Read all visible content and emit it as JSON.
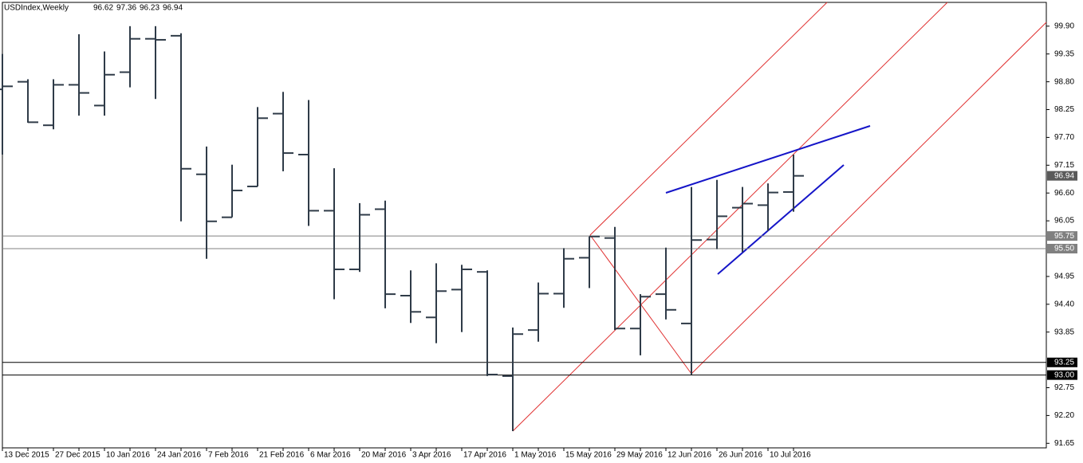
{
  "chart_data": {
    "type": "ohlc",
    "title": "USDIndex,Weekly",
    "categories": [
      "13 Dec 2015",
      null,
      "27 Dec 2015",
      null,
      "10 Jan 2016",
      null,
      "24 Jan 2016",
      null,
      "7 Feb 2016",
      null,
      "21 Feb 2016",
      null,
      "6 Mar 2016",
      null,
      "20 Mar 2016",
      null,
      "3 Apr 2016",
      null,
      "17 Apr 2016",
      null,
      "1 May 2016",
      null,
      "15 May 2016",
      null,
      "29 May 2016",
      null,
      "12 Jun 2016",
      null,
      "26 Jun 2016",
      null,
      "10 Jul 2016",
      null
    ],
    "open": [
      98.65,
      98.8,
      97.94,
      98.74,
      98.33,
      98.99,
      99.65,
      99.71,
      96.97,
      96.12,
      96.73,
      98.17,
      97.36,
      96.25,
      95.09,
      96.28,
      94.57,
      94.14,
      94.69,
      95.04,
      92.98,
      93.89,
      94.61,
      95.32,
      95.71,
      93.92,
      94.6,
      94.02,
      95.68,
      96.31,
      96.36,
      96.62
    ],
    "high": [
      99.35,
      98.85,
      98.85,
      99.74,
      99.4,
      99.9,
      99.9,
      99.76,
      97.52,
      97.16,
      98.3,
      98.6,
      98.44,
      97.09,
      96.4,
      96.45,
      95.07,
      95.21,
      95.18,
      95.07,
      93.94,
      94.83,
      95.51,
      95.74,
      95.93,
      94.6,
      95.52,
      96.72,
      96.86,
      96.72,
      96.79,
      97.36
    ],
    "low": [
      97.36,
      97.99,
      97.86,
      98.13,
      98.13,
      98.69,
      98.46,
      96.04,
      95.3,
      96.12,
      96.73,
      97.03,
      95.95,
      94.5,
      95.04,
      94.32,
      94.03,
      93.63,
      93.85,
      92.98,
      91.89,
      93.66,
      94.33,
      94.72,
      93.89,
      93.39,
      94.1,
      93.01,
      95.49,
      95.43,
      95.85,
      96.23
    ],
    "close": [
      98.71,
      98.0,
      98.74,
      98.58,
      98.94,
      99.65,
      99.63,
      97.08,
      96.04,
      96.65,
      98.08,
      97.39,
      96.25,
      95.09,
      96.17,
      94.6,
      94.25,
      94.66,
      95.09,
      93.01,
      93.81,
      94.61,
      95.3,
      95.74,
      93.92,
      94.55,
      94.29,
      95.67,
      96.14,
      96.39,
      96.61,
      96.94
    ],
    "color": "#2f3b48",
    "ylim": [
      91.56,
      100.37
    ],
    "yticks": [
      {
        "value": 99.9,
        "label": "99.90"
      },
      99.35,
      {
        "value": 98.8,
        "label": "98.80"
      },
      98.25,
      {
        "value": 97.7,
        "label": "97.70"
      },
      97.15,
      {
        "value": 96.6,
        "label": "96.60"
      },
      96.05,
      94.95,
      {
        "value": 94.4,
        "label": "94.40"
      },
      93.85,
      92.75,
      {
        "value": 92.2,
        "label": "92.20"
      },
      91.65
    ],
    "levels": [
      95.75,
      {
        "value": 95.5,
        "label": "95.50"
      },
      93.25,
      {
        "value": 93,
        "label": "93.00"
      }
    ],
    "level_colors": [
      "#808080",
      "#808080",
      "#000000",
      "#000000"
    ],
    "grid": false
  }
}
